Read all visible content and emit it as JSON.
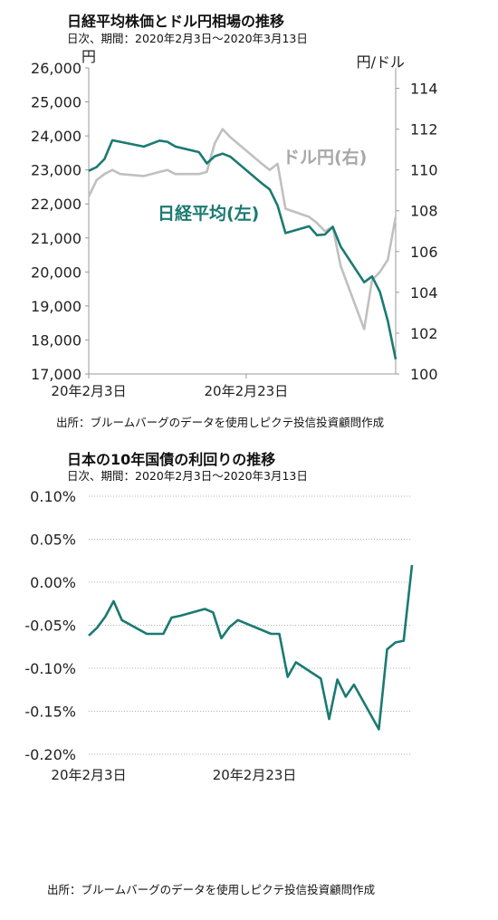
{
  "chart1": {
    "title": "日経平均株価とドル円相場の推移",
    "subtitle": "日次、期間：2020年2月3日～2020年3月13日",
    "source": "出所：ブルームバーグのデータを使用しピクテ投信投資顧問作成"
  },
  "chart2": {
    "title": "日本の10年国債の利回りの推移",
    "subtitle": "日次、期間：2020年2月3日～2020年3月13日",
    "source": "出所：ブルームバーグのデータを使用しピクテ投信投資顧問作成"
  },
  "colors": {
    "nikkei": "#1b7a72",
    "usdjpy": "#c0c0c0",
    "jgb": "#1b7a72",
    "axis": "#999999"
  },
  "chart_data": [
    {
      "type": "line",
      "title": "日経平均株価とドル円相場の推移",
      "x_ticks": [
        "20年2月3日",
        "20年2月23日"
      ],
      "y_left_unit": "円",
      "y_right_unit": "円/ドル",
      "ylim_left": [
        17000,
        26000
      ],
      "ylim_right": [
        100,
        115
      ],
      "y_left_ticks": [
        "17,000",
        "18,000",
        "19,000",
        "20,000",
        "21,000",
        "22,000",
        "23,000",
        "24,000",
        "25,000",
        "26,000"
      ],
      "y_right_ticks": [
        "100",
        "102",
        "104",
        "106",
        "108",
        "110",
        "112",
        "114"
      ],
      "x": [
        "2020-02-03",
        "2020-02-04",
        "2020-02-05",
        "2020-02-06",
        "2020-02-07",
        "2020-02-10",
        "2020-02-12",
        "2020-02-13",
        "2020-02-14",
        "2020-02-17",
        "2020-02-18",
        "2020-02-19",
        "2020-02-20",
        "2020-02-21",
        "2020-02-25",
        "2020-02-26",
        "2020-02-27",
        "2020-02-28",
        "2020-03-02",
        "2020-03-03",
        "2020-03-04",
        "2020-03-05",
        "2020-03-06",
        "2020-03-09",
        "2020-03-10",
        "2020-03-11",
        "2020-03-12",
        "2020-03-13"
      ],
      "series": [
        {
          "name": "日経平均(左)",
          "axis": "left",
          "values": [
            22972,
            23084,
            23320,
            23873,
            23828,
            23686,
            23861,
            23828,
            23688,
            23523,
            23194,
            23400,
            23479,
            23387,
            22606,
            22426,
            21949,
            21143,
            21344,
            21082,
            21100,
            21329,
            20750,
            19698,
            19867,
            19416,
            18560,
            17431
          ]
        },
        {
          "name": "ドル円(右)",
          "axis": "right",
          "values": [
            108.7,
            109.5,
            109.8,
            110.0,
            109.8,
            109.7,
            109.9,
            110.0,
            109.8,
            109.8,
            109.9,
            111.3,
            112.0,
            111.6,
            110.3,
            110.0,
            110.3,
            108.1,
            107.7,
            107.4,
            107.0,
            107.2,
            105.3,
            102.2,
            104.6,
            105.0,
            105.6,
            107.7
          ]
        }
      ]
    },
    {
      "type": "line",
      "title": "日本の10年国債の利回りの推移",
      "x_ticks": [
        "20年2月3日",
        "20年2月23日"
      ],
      "ylim": [
        -0.2,
        0.1
      ],
      "y_ticks": [
        "-0.20%",
        "-0.15%",
        "-0.10%",
        "-0.05%",
        "0.00%",
        "0.05%",
        "0.10%"
      ],
      "x": [
        "2020-02-03",
        "2020-02-04",
        "2020-02-05",
        "2020-02-06",
        "2020-02-07",
        "2020-02-10",
        "2020-02-12",
        "2020-02-13",
        "2020-02-14",
        "2020-02-17",
        "2020-02-18",
        "2020-02-19",
        "2020-02-20",
        "2020-02-21",
        "2020-02-25",
        "2020-02-26",
        "2020-02-27",
        "2020-02-28",
        "2020-03-02",
        "2020-03-03",
        "2020-03-04",
        "2020-03-05",
        "2020-03-06",
        "2020-03-09",
        "2020-03-10",
        "2020-03-11",
        "2020-03-12",
        "2020-03-13"
      ],
      "series": [
        {
          "name": "",
          "values": [
            -0.062,
            -0.053,
            -0.04,
            -0.022,
            -0.044,
            -0.06,
            -0.06,
            -0.041,
            -0.039,
            -0.031,
            -0.035,
            -0.065,
            -0.052,
            -0.044,
            -0.06,
            -0.06,
            -0.11,
            -0.093,
            -0.112,
            -0.159,
            -0.113,
            -0.133,
            -0.119,
            -0.171,
            -0.078,
            -0.07,
            -0.068,
            0.02
          ]
        }
      ]
    }
  ],
  "annotations": {
    "usdjpy_label": "ドル円(右)",
    "nikkei_label": "日経平均(左)"
  }
}
